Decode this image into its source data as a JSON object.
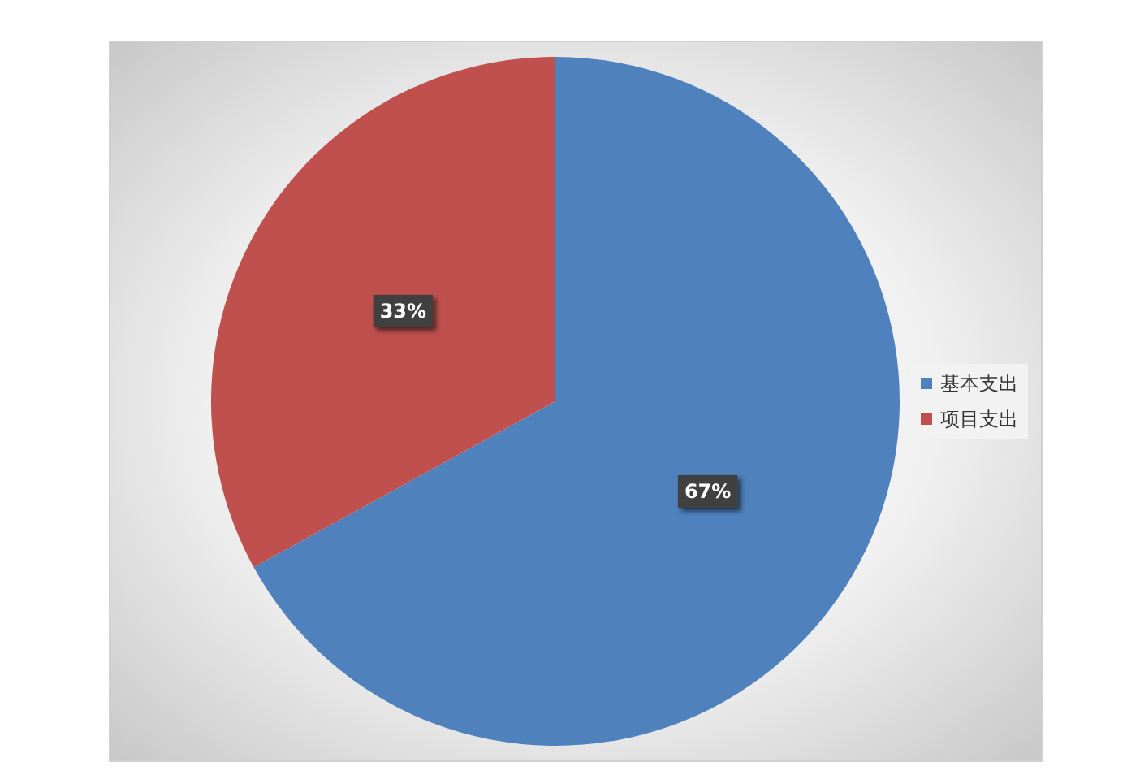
{
  "chart_data": {
    "type": "pie",
    "categories": [
      "基本支出",
      "项目支出"
    ],
    "values": [
      67,
      33
    ],
    "colors": [
      "#4f81bd",
      "#c0504d"
    ],
    "value_labels": [
      "67%",
      "33%"
    ],
    "legend": "right"
  }
}
